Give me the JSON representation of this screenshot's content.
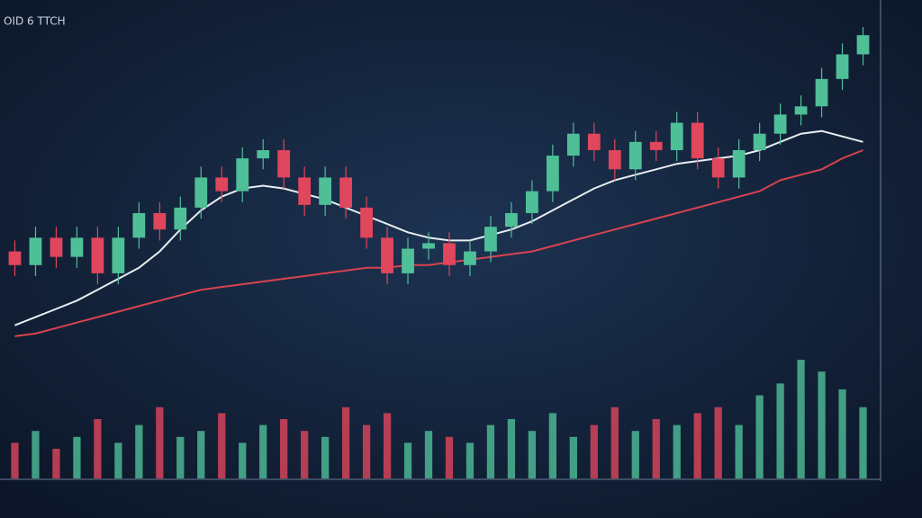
{
  "chart_data": {
    "type": "candlestick",
    "title": "OID 6 TTCH",
    "open": [
      18,
      13,
      23,
      16,
      23,
      10,
      23,
      32,
      26,
      34,
      45,
      40,
      52,
      55,
      45,
      35,
      45,
      34,
      23,
      10,
      19,
      21,
      13,
      18,
      27,
      32,
      40,
      53,
      61,
      55,
      48,
      58,
      55,
      65,
      52,
      45,
      55,
      61,
      68,
      71,
      81,
      90
    ],
    "high": [
      22,
      27,
      27,
      27,
      27,
      27,
      36,
      36,
      38,
      49,
      49,
      56,
      59,
      59,
      49,
      49,
      49,
      38,
      27,
      23,
      25,
      25,
      22,
      31,
      36,
      44,
      57,
      65,
      65,
      59,
      62,
      62,
      69,
      69,
      56,
      59,
      65,
      72,
      75,
      85,
      94,
      100
    ],
    "low": [
      9,
      9,
      12,
      12,
      6,
      6,
      19,
      22,
      22,
      30,
      36,
      36,
      48,
      41,
      31,
      31,
      30,
      19,
      6,
      6,
      15,
      9,
      9,
      14,
      23,
      28,
      36,
      49,
      51,
      44,
      44,
      51,
      51,
      48,
      41,
      41,
      51,
      57,
      64,
      67,
      77,
      86
    ],
    "close": [
      13,
      23,
      16,
      23,
      10,
      23,
      32,
      26,
      34,
      45,
      40,
      52,
      55,
      45,
      35,
      45,
      34,
      23,
      10,
      19,
      21,
      13,
      18,
      27,
      32,
      40,
      53,
      61,
      55,
      48,
      58,
      55,
      65,
      52,
      45,
      55,
      61,
      68,
      71,
      81,
      90,
      97
    ],
    "up_color": "#4fbf98",
    "down_color": "#e0465c",
    "lines": [
      {
        "color": "#e8edf2",
        "values": [
          -9,
          -6,
          -3,
          0,
          4,
          8,
          12,
          18,
          26,
          33,
          38,
          41,
          42,
          41,
          39,
          37,
          34,
          31,
          28,
          25,
          23,
          22,
          22,
          24,
          26,
          29,
          33,
          37,
          41,
          44,
          46,
          48,
          50,
          51,
          52,
          53,
          55,
          58,
          61,
          62,
          60,
          58
        ]
      },
      {
        "color": "#d9434f",
        "values": [
          -13,
          -12,
          -10,
          -8,
          -6,
          -4,
          -2,
          0,
          2,
          4,
          5,
          6,
          7,
          8,
          9,
          10,
          11,
          12,
          12,
          13,
          13,
          14,
          15,
          16,
          17,
          18,
          20,
          22,
          24,
          26,
          28,
          30,
          32,
          34,
          36,
          38,
          40,
          44,
          46,
          48,
          52,
          55
        ]
      }
    ],
    "ylim": [
      -15,
      100
    ],
    "volume": {
      "values": [
        30,
        40,
        25,
        35,
        50,
        30,
        45,
        60,
        35,
        40,
        55,
        30,
        45,
        50,
        40,
        35,
        60,
        45,
        55,
        30,
        40,
        35,
        30,
        45,
        50,
        40,
        55,
        35,
        45,
        60,
        40,
        50,
        45,
        55,
        60,
        45,
        70,
        80,
        100,
        90,
        75,
        60
      ],
      "ylim": [
        0,
        100
      ]
    }
  }
}
